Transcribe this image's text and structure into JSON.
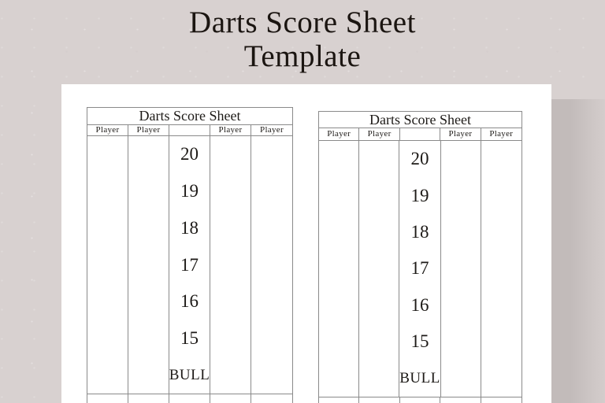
{
  "page": {
    "title_line1": "Darts Score Sheet",
    "title_line2": "Template"
  },
  "sheets": [
    {
      "title": "Darts Score Sheet",
      "headers": [
        "Player",
        "Player",
        "",
        "Player",
        "Player"
      ],
      "targets": [
        "20",
        "19",
        "18",
        "17",
        "16",
        "15",
        "BULL"
      ]
    },
    {
      "title": "Darts Score Sheet",
      "headers": [
        "Player",
        "Player",
        "",
        "Player",
        "Player"
      ],
      "targets": [
        "20",
        "19",
        "18",
        "17",
        "16",
        "15",
        "BULL"
      ]
    }
  ],
  "colors": {
    "background": "#d8d1d0",
    "page": "#ffffff",
    "border": "#8a8a8a",
    "text": "#1d1a17",
    "title": "#1b1511",
    "shadow_dark": "#c2bbba",
    "shadow_light": "#d4cdcc"
  }
}
